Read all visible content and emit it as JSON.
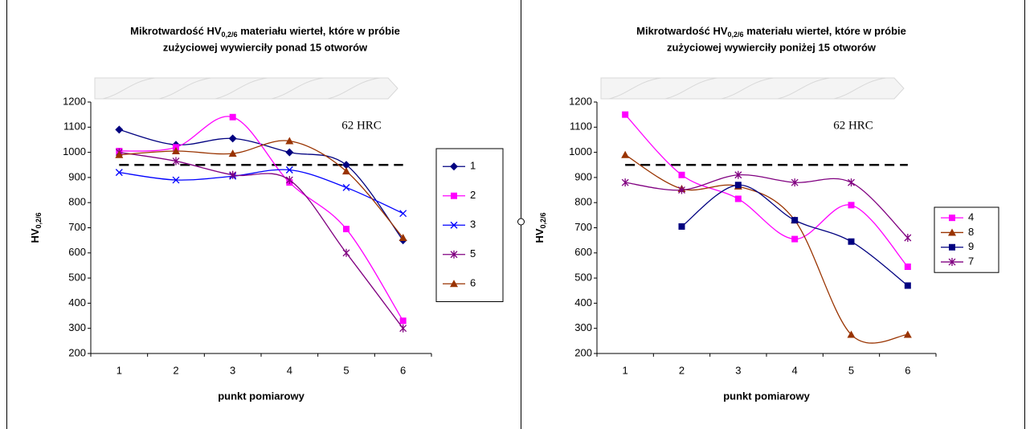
{
  "chart_data": [
    {
      "type": "line",
      "title": {
        "prefix": "Mikrotwardość HV",
        "subscript": "0,2/6",
        "suffix": " materiału wierteł, które w próbie",
        "line2": "zużyciowej wywierciły ponad 15 otworów"
      },
      "y_label": {
        "main": "HV",
        "subscript": "0,2/6"
      },
      "x_label": "punkt pomiarowy",
      "categories": [
        "1",
        "2",
        "3",
        "4",
        "5",
        "6"
      ],
      "ylim": [
        200,
        1200
      ],
      "yticks": [
        200,
        300,
        400,
        500,
        600,
        700,
        800,
        900,
        1000,
        1100,
        1200
      ],
      "reference_line": 950,
      "annotation": "62 HRC",
      "smooth": true,
      "legend": "right",
      "series": [
        {
          "name": "1",
          "color": "#000080",
          "marker": "diamond",
          "values": [
            1090,
            1030,
            1055,
            1000,
            950,
            650
          ]
        },
        {
          "name": "2",
          "color": "#ff00ff",
          "marker": "square",
          "values": [
            1005,
            1020,
            1140,
            880,
            695,
            330
          ]
        },
        {
          "name": "3",
          "color": "#0000ff",
          "marker": "x",
          "values": [
            920,
            890,
            905,
            930,
            860,
            757
          ]
        },
        {
          "name": "5",
          "color": "#800080",
          "marker": "star",
          "values": [
            1000,
            965,
            910,
            890,
            600,
            300
          ]
        },
        {
          "name": "6",
          "color": "#993300",
          "marker": "triangle",
          "values": [
            990,
            1005,
            995,
            1045,
            925,
            660
          ]
        }
      ]
    },
    {
      "type": "line",
      "title": {
        "prefix": "Mikrotwardość HV",
        "subscript": "0,2/6",
        "suffix": " materiału wierteł, które w próbie",
        "line2": "zużyciowej wywierciły poniżej 15 otworów"
      },
      "y_label": {
        "main": "HV",
        "subscript": "0,2/6"
      },
      "x_label": "punkt pomiarowy",
      "categories": [
        "1",
        "2",
        "3",
        "4",
        "5",
        "6"
      ],
      "ylim": [
        200,
        1200
      ],
      "yticks": [
        200,
        300,
        400,
        500,
        600,
        700,
        800,
        900,
        1000,
        1100,
        1200
      ],
      "reference_line": 950,
      "annotation": "62 HRC",
      "smooth": true,
      "legend": "right",
      "series": [
        {
          "name": "4",
          "color": "#ff00ff",
          "marker": "square",
          "values": [
            1150,
            910,
            815,
            655,
            790,
            545
          ]
        },
        {
          "name": "8",
          "color": "#993300",
          "marker": "triangle",
          "values": [
            990,
            855,
            865,
            730,
            275,
            275
          ]
        },
        {
          "name": "9",
          "color": "#000080",
          "marker": "square",
          "values": [
            null,
            705,
            870,
            730,
            645,
            470
          ]
        },
        {
          "name": "7",
          "color": "#800080",
          "marker": "star",
          "values": [
            880,
            850,
            910,
            880,
            880,
            660
          ]
        }
      ]
    }
  ]
}
